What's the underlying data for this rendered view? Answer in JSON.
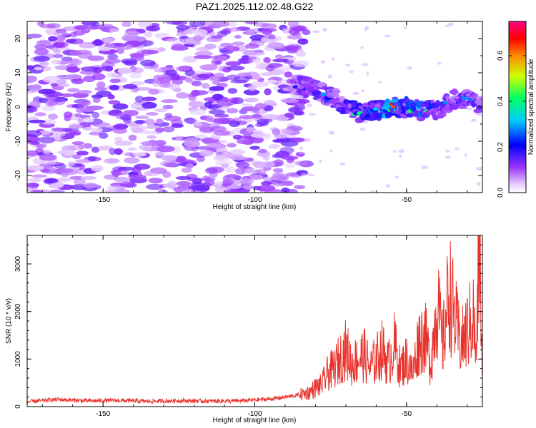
{
  "figure": {
    "title": "PAZ1.2025.112.02.48.G22"
  },
  "chart_data": [
    {
      "type": "heatmap",
      "title": "PAZ1.2025.112.02.48.G22",
      "xlabel": "Height of straight line (km)",
      "ylabel": "Frequency (Hz)",
      "xlim": [
        -175,
        -25
      ],
      "ylim": [
        -25,
        25
      ],
      "xticks": [
        -150,
        -100,
        -50
      ],
      "yticks": [
        -20,
        -10,
        0,
        10,
        20
      ],
      "colorbar": {
        "label": "Normalized spectral amplitude",
        "range": [
          0,
          0.75
        ],
        "ticks": [
          0,
          0.2,
          0.4,
          0.6
        ],
        "colormap": "rainbow (violet-blue-cyan-green-yellow-red-magenta)"
      },
      "signal_ridge": {
        "x": [
          -87,
          -80,
          -75,
          -70,
          -65,
          -60,
          -55,
          -50,
          -45,
          -40,
          -35,
          -30,
          -25
        ],
        "freq_hz": [
          7,
          5,
          3,
          0,
          -2,
          -1,
          0,
          0,
          -1,
          -1,
          2,
          2,
          1
        ],
        "peak_amplitude": [
          0.25,
          0.3,
          0.3,
          0.35,
          0.45,
          0.35,
          0.75,
          0.4,
          0.65,
          0.3,
          0.3,
          0.3,
          0.3
        ]
      },
      "noise_region": {
        "x_range": [
          -175,
          -85
        ],
        "level": 0.05
      }
    },
    {
      "type": "line",
      "xlabel": "Height of straight line (km)",
      "ylabel": "SNR (10 * v/v)",
      "xlim": [
        -175,
        -25
      ],
      "ylim": [
        0,
        3600
      ],
      "xticks": [
        -150,
        -100,
        -50
      ],
      "yticks": [
        0,
        1000,
        2000,
        3000
      ],
      "series": [
        {
          "color": "#e8332c",
          "x": [
            -175,
            -165,
            -155,
            -145,
            -135,
            -125,
            -115,
            -105,
            -95,
            -90,
            -85,
            -82,
            -80,
            -78,
            -76,
            -74,
            -72,
            -70,
            -68,
            -66,
            -64,
            -62,
            -60,
            -58,
            -56,
            -54,
            -52,
            -50,
            -48,
            -46,
            -44,
            -42,
            -40,
            -38,
            -36,
            -34,
            -32,
            -30,
            -28,
            -27,
            -26,
            -25
          ],
          "y": [
            100,
            150,
            120,
            130,
            110,
            125,
            115,
            120,
            160,
            200,
            250,
            300,
            400,
            450,
            700,
            800,
            1000,
            1200,
            900,
            1000,
            1100,
            800,
            1000,
            1200,
            900,
            1300,
            800,
            1000,
            700,
            1400,
            1500,
            900,
            2200,
            1300,
            2500,
            1800,
            1300,
            1600,
            1900,
            1000,
            3600,
            600
          ]
        }
      ]
    }
  ],
  "colors": {
    "line": "#e8332c",
    "background": "#ffffff",
    "axes": "#000000"
  }
}
